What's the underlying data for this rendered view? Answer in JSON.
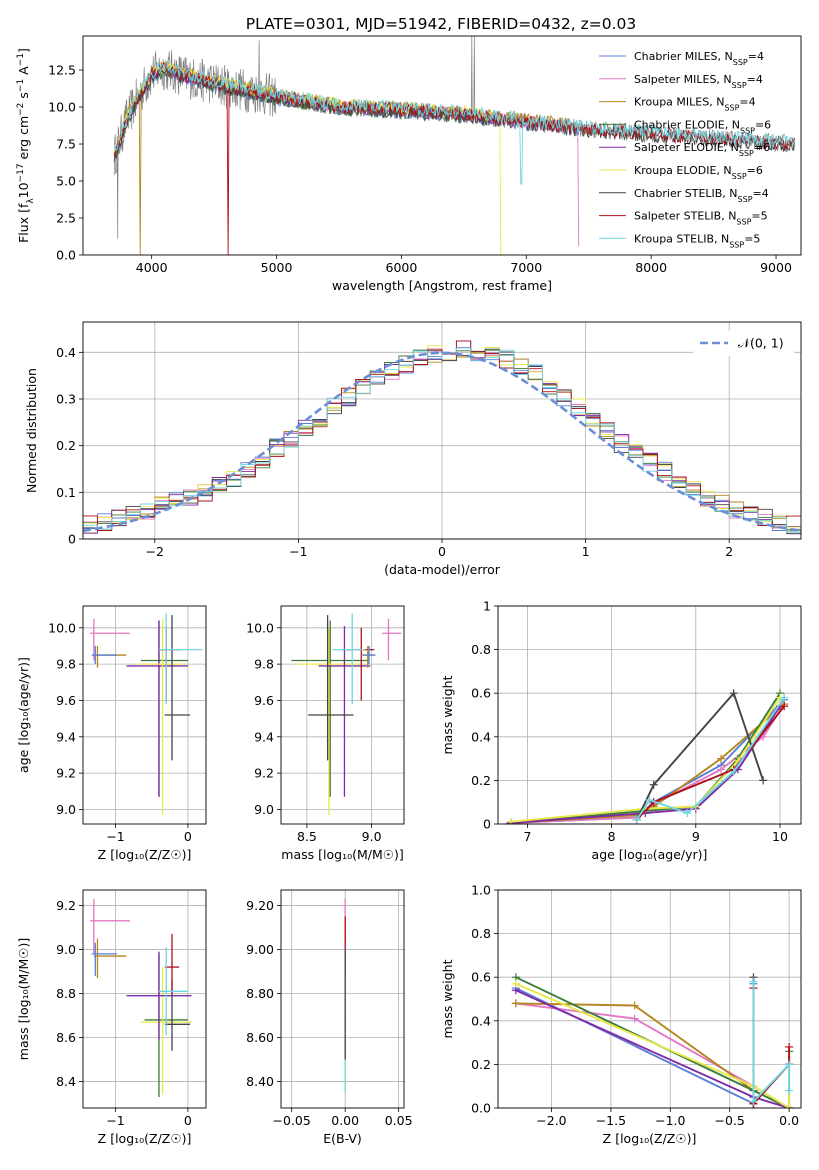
{
  "figure_title": "PLATE=0301, MJD=51942, FIBERID=0432, z=0.03",
  "colors": {
    "Chabrier MILES": "#5b7fd6",
    "Salpeter MILES": "#e377c2",
    "Kroupa MILES": "#b5851f",
    "Chabrier ELODIE": "#3a7d3a",
    "Salpeter ELODIE": "#7f2aa8",
    "Kroupa ELODIE": "#e8e84a",
    "Chabrier STELIB": "#444444",
    "Salpeter STELIB": "#b0101a",
    "Kroupa STELIB": "#6fd6e0",
    "grid": "#b0b0b0",
    "normal_curve": "#6a8fd6"
  },
  "chart_data": [
    {
      "id": "spectrum",
      "type": "line",
      "xlabel": "wavelength [Angstrom, rest frame]",
      "ylabel": "Flux [f$_\\lambda$10$^{-17}$ erg cm$^{-2}$ s$^{-1}$ A$^{-1}$]",
      "ylabel_parts": [
        "Flux [f",
        "λ",
        "10",
        "−17",
        " erg cm",
        "−2",
        " s",
        "−1",
        " A",
        "−1",
        "]"
      ],
      "xlim": [
        3450,
        9200
      ],
      "ylim": [
        0,
        14.8
      ],
      "xticks": [
        4000,
        5000,
        6000,
        7000,
        8000,
        9000
      ],
      "yticks": [
        0.0,
        2.5,
        5.0,
        7.5,
        10.0,
        12.5
      ],
      "grid": false,
      "legend_placement": "top-right",
      "legend": [
        {
          "label": "Chabrier MILES",
          "nssp": "4"
        },
        {
          "label": "Salpeter MILES",
          "nssp": "4"
        },
        {
          "label": "Kroupa MILES",
          "nssp": "4"
        },
        {
          "label": "Chabrier ELODIE",
          "nssp": "6"
        },
        {
          "label": "Salpeter ELODIE",
          "nssp": "6"
        },
        {
          "label": "Kroupa ELODIE",
          "nssp": "6"
        },
        {
          "label": "Chabrier STELIB",
          "nssp": "4"
        },
        {
          "label": "Salpeter STELIB",
          "nssp": "5"
        },
        {
          "label": "Kroupa STELIB",
          "nssp": "5"
        }
      ],
      "nssp_prefix": "N",
      "nssp_sub": "SSP",
      "continuum": {
        "x": [
          3700,
          3800,
          3900,
          4000,
          4100,
          4300,
          4600,
          5000,
          5500,
          6000,
          6500,
          7000,
          7500,
          8000,
          8500,
          9000,
          9150
        ],
        "y": [
          6.6,
          9.2,
          10.8,
          12.2,
          12.6,
          12.0,
          11.4,
          10.7,
          10.0,
          9.8,
          9.5,
          9.0,
          8.5,
          8.2,
          7.9,
          7.6,
          7.5
        ]
      },
      "model_end": {
        "MILES": 7420,
        "ELODIE": 6800,
        "STELIB": 9150
      },
      "model_dips": [
        {
          "series": "Salpeter STELIB",
          "x": 4610,
          "y": 0.0
        },
        {
          "series": "Kroupa ELODIE",
          "x": 6800,
          "y": 0.0
        },
        {
          "series": "Kroupa STELIB",
          "x": 6960,
          "y": 4.8
        },
        {
          "series": "Salpeter MILES",
          "x": 7420,
          "y": 0.6
        },
        {
          "series": "Kroupa MILES",
          "x": 3910,
          "y": 0.0
        }
      ],
      "data_spikes": [
        {
          "x": 6563,
          "y": 14.8
        },
        {
          "x": 6583,
          "y": 14.8
        },
        {
          "x": 4861,
          "y": 14.5
        },
        {
          "x": 3727,
          "y": 1.1
        }
      ]
    },
    {
      "id": "residuals",
      "type": "area",
      "xlabel": "(data-model)/error",
      "ylabel": "Normed distribution",
      "xlim": [
        -2.5,
        2.5
      ],
      "ylim": [
        0,
        0.465
      ],
      "xticks": [
        -2,
        -1,
        0,
        1,
        2
      ],
      "yticks": [
        0.0,
        0.1,
        0.2,
        0.3,
        0.4
      ],
      "grid": true,
      "legend_placement": "top-right",
      "legend": [
        {
          "label": "𝒩(0, 1)"
        }
      ],
      "bin_width": 0.1,
      "bin_start": -2.5,
      "histogram_values": [
        0.03,
        0.035,
        0.042,
        0.05,
        0.06,
        0.07,
        0.08,
        0.088,
        0.1,
        0.115,
        0.13,
        0.15,
        0.172,
        0.195,
        0.215,
        0.235,
        0.26,
        0.285,
        0.305,
        0.325,
        0.345,
        0.36,
        0.375,
        0.385,
        0.395,
        0.4,
        0.405,
        0.4,
        0.393,
        0.385,
        0.372,
        0.355,
        0.33,
        0.305,
        0.28,
        0.255,
        0.23,
        0.205,
        0.185,
        0.165,
        0.145,
        0.125,
        0.105,
        0.09,
        0.078,
        0.065,
        0.054,
        0.045,
        0.035,
        0.03
      ],
      "normal_curve": {
        "mean": 0,
        "sigma": 1
      }
    },
    {
      "id": "age-vs-Z",
      "type": "scatter",
      "xlabel": "Z [log₁₀(Z/Z☉)]",
      "ylabel": "age  [log₁₀(age/yr)]",
      "xlim": [
        -1.45,
        0.25
      ],
      "ylim": [
        8.92,
        10.12
      ],
      "xticks": [
        -1,
        0
      ],
      "yticks": [
        9.0,
        9.2,
        9.4,
        9.6,
        9.8,
        10.0
      ],
      "grid": true,
      "points": [
        {
          "series": "Salpeter MILES",
          "x": -1.3,
          "y": 9.97,
          "xerr": [
            0.05,
            0.5
          ],
          "yerr": [
            0.15,
            0.08
          ]
        },
        {
          "series": "Kroupa MILES",
          "x": -1.25,
          "y": 9.85,
          "xerr": [
            0.05,
            0.4
          ],
          "yerr": [
            0.07,
            0.05
          ]
        },
        {
          "series": "Chabrier MILES",
          "x": -1.28,
          "y": 9.85,
          "xerr": [
            0.05,
            0.3
          ],
          "yerr": [
            0.05,
            0.05
          ]
        },
        {
          "series": "Chabrier ELODIE",
          "x": -0.4,
          "y": 9.82,
          "xerr": [
            0.25,
            0.4
          ],
          "yerr": [
            0.75,
            0.22
          ]
        },
        {
          "series": "Salpeter ELODIE",
          "x": -0.4,
          "y": 9.79,
          "xerr": [
            0.45,
            0.4
          ],
          "yerr": [
            0.72,
            0.25
          ]
        },
        {
          "series": "Kroupa ELODIE",
          "x": -0.35,
          "y": 9.8,
          "xerr": [
            0.35,
            0.3
          ],
          "yerr": [
            0.83,
            0.25
          ]
        },
        {
          "series": "Chabrier STELIB",
          "x": -0.22,
          "y": 9.52,
          "xerr": [
            0.1,
            0.25
          ],
          "yerr": [
            0.25,
            0.55
          ]
        },
        {
          "series": "Salpeter STELIB",
          "x": -0.3,
          "y": 9.88,
          "xerr": [
            0.1,
            0.2
          ],
          "yerr": [
            0.28,
            0.12
          ]
        },
        {
          "series": "Kroupa STELIB",
          "x": -0.3,
          "y": 9.88,
          "xerr": [
            0.1,
            0.5
          ],
          "yerr": [
            0.3,
            0.2
          ]
        }
      ]
    },
    {
      "id": "age-vs-mass",
      "type": "scatter",
      "xlabel": "mass [log₁₀(M/M☉)]",
      "ylabel": "",
      "xlim": [
        8.3,
        9.25
      ],
      "ylim": [
        8.92,
        10.12
      ],
      "xticks": [
        8.5,
        9.0
      ],
      "yticks": [
        9.0,
        9.2,
        9.4,
        9.6,
        9.8,
        10.0
      ],
      "grid": true,
      "points": [
        {
          "series": "Chabrier ELODIE",
          "x": 8.68,
          "y": 9.82,
          "xerr": [
            0.3,
            0.3
          ],
          "yerr": [
            0.75,
            0.22
          ]
        },
        {
          "series": "Kroupa ELODIE",
          "x": 8.67,
          "y": 9.8,
          "xerr": [
            0.25,
            0.25
          ],
          "yerr": [
            0.83,
            0.2
          ]
        },
        {
          "series": "Salpeter ELODIE",
          "x": 8.79,
          "y": 9.79,
          "xerr": [
            0.2,
            0.2
          ],
          "yerr": [
            0.72,
            0.22
          ]
        },
        {
          "series": "Chabrier STELIB",
          "x": 8.66,
          "y": 9.52,
          "xerr": [
            0.15,
            0.2
          ],
          "yerr": [
            0.25,
            0.55
          ]
        },
        {
          "series": "Salpeter STELIB",
          "x": 8.92,
          "y": 9.88,
          "xerr": [
            0.15,
            0.1
          ],
          "yerr": [
            0.28,
            0.12
          ]
        },
        {
          "series": "Salpeter MILES",
          "x": 9.13,
          "y": 9.97,
          "xerr": [
            0.05,
            0.1
          ],
          "yerr": [
            0.15,
            0.08
          ]
        },
        {
          "series": "Kroupa MILES",
          "x": 8.97,
          "y": 9.85,
          "xerr": [
            0.05,
            0.05
          ],
          "yerr": [
            0.07,
            0.05
          ]
        },
        {
          "series": "Kroupa STELIB",
          "x": 8.85,
          "y": 9.88,
          "xerr": [
            0.15,
            0.1
          ],
          "yerr": [
            0.3,
            0.2
          ]
        },
        {
          "series": "Chabrier MILES",
          "x": 8.98,
          "y": 9.85,
          "xerr": [
            0.05,
            0.05
          ],
          "yerr": [
            0.05,
            0.05
          ]
        }
      ]
    },
    {
      "id": "mass-weight-vs-age",
      "type": "line",
      "xlabel": "age  [log₁₀(age/yr)]",
      "ylabel": "mass weight",
      "xlim": [
        6.65,
        10.25
      ],
      "ylim": [
        0,
        1
      ],
      "xticks": [
        7,
        8,
        9,
        10
      ],
      "yticks": [
        0.0,
        0.2,
        0.4,
        0.6,
        0.8,
        1.0
      ],
      "grid": true,
      "series": [
        {
          "name": "Chabrier MILES",
          "x": [
            6.8,
            8.3,
            8.5,
            9.3,
            10.05
          ],
          "y": [
            0.005,
            0.03,
            0.1,
            0.27,
            0.57
          ]
        },
        {
          "name": "Salpeter MILES",
          "x": [
            6.8,
            8.3,
            8.5,
            9.3,
            9.8,
            10.05
          ],
          "y": [
            0.005,
            0.03,
            0.09,
            0.25,
            0.4,
            0.55
          ]
        },
        {
          "name": "Kroupa MILES",
          "x": [
            6.8,
            8.3,
            8.5,
            9.3,
            10.05
          ],
          "y": [
            0.005,
            0.04,
            0.08,
            0.3,
            0.55
          ]
        },
        {
          "name": "Chabrier ELODIE",
          "x": [
            6.8,
            8.4,
            9.0,
            9.5,
            10.0
          ],
          "y": [
            0.005,
            0.06,
            0.08,
            0.3,
            0.6
          ]
        },
        {
          "name": "Salpeter ELODIE",
          "x": [
            6.8,
            8.4,
            9.0,
            9.5,
            10.0
          ],
          "y": [
            0.005,
            0.05,
            0.07,
            0.25,
            0.54
          ]
        },
        {
          "name": "Kroupa ELODIE",
          "x": [
            6.8,
            8.4,
            9.0,
            9.5,
            10.0
          ],
          "y": [
            0.01,
            0.07,
            0.08,
            0.29,
            0.58
          ]
        },
        {
          "name": "Chabrier STELIB",
          "x": [
            8.3,
            8.5,
            9.45,
            9.8
          ],
          "y": [
            0.02,
            0.18,
            0.6,
            0.2
          ]
        },
        {
          "name": "Salpeter STELIB",
          "x": [
            8.3,
            8.5,
            9.45,
            10.05
          ],
          "y": [
            0.02,
            0.1,
            0.25,
            0.54
          ]
        },
        {
          "name": "Kroupa STELIB",
          "x": [
            8.3,
            8.45,
            8.9,
            9.45,
            10.05
          ],
          "y": [
            0.02,
            0.11,
            0.05,
            0.24,
            0.58
          ]
        }
      ]
    },
    {
      "id": "mass-vs-Z",
      "type": "scatter",
      "xlabel": "Z [log₁₀(Z/Z☉)]",
      "ylabel": "mass [log₁₀(M/M☉)]",
      "xlim": [
        -1.45,
        0.25
      ],
      "ylim": [
        8.28,
        9.27
      ],
      "xticks": [
        -1,
        0
      ],
      "yticks": [
        8.4,
        8.6,
        8.8,
        9.0,
        9.2
      ],
      "grid": true,
      "points": [
        {
          "series": "Salpeter MILES",
          "x": -1.3,
          "y": 9.13,
          "xerr": [
            0.05,
            0.5
          ],
          "yerr": [
            0.15,
            0.1
          ]
        },
        {
          "series": "Kroupa MILES",
          "x": -1.25,
          "y": 8.97,
          "xerr": [
            0.05,
            0.4
          ],
          "yerr": [
            0.1,
            0.08
          ]
        },
        {
          "series": "Chabrier MILES",
          "x": -1.28,
          "y": 8.98,
          "xerr": [
            0.05,
            0.3
          ],
          "yerr": [
            0.1,
            0.05
          ]
        },
        {
          "series": "Chabrier ELODIE",
          "x": -0.4,
          "y": 8.68,
          "xerr": [
            0.2,
            0.4
          ],
          "yerr": [
            0.35,
            0.3
          ]
        },
        {
          "series": "Kroupa ELODIE",
          "x": -0.35,
          "y": 8.67,
          "xerr": [
            0.3,
            0.4
          ],
          "yerr": [
            0.33,
            0.25
          ]
        },
        {
          "series": "Salpeter ELODIE",
          "x": -0.4,
          "y": 8.79,
          "xerr": [
            0.45,
            0.45
          ],
          "yerr": [
            0.2,
            0.2
          ]
        },
        {
          "series": "Chabrier STELIB",
          "x": -0.22,
          "y": 8.66,
          "xerr": [
            0.1,
            0.25
          ],
          "yerr": [
            0.12,
            0.2
          ]
        },
        {
          "series": "Salpeter STELIB",
          "x": -0.22,
          "y": 8.92,
          "xerr": [
            0.1,
            0.1
          ],
          "yerr": [
            0.12,
            0.15
          ]
        },
        {
          "series": "Kroupa STELIB",
          "x": -0.3,
          "y": 8.81,
          "xerr": [
            0.1,
            0.3
          ],
          "yerr": [
            0.2,
            0.2
          ]
        }
      ]
    },
    {
      "id": "mass-vs-EBV",
      "type": "scatter",
      "xlabel": "E(B-V)",
      "ylabel": "",
      "xlim": [
        -0.06,
        0.055
      ],
      "ylim": [
        8.28,
        9.27
      ],
      "xticks": [
        -0.05,
        0.0,
        0.05
      ],
      "yticks": [
        8.4,
        8.6,
        8.8,
        9.0,
        9.2
      ],
      "grid": true,
      "points": [
        {
          "series": "Salpeter MILES",
          "x": 0,
          "y": 9.13,
          "xerr": [
            0,
            0
          ],
          "yerr": [
            0.1,
            0.1
          ]
        },
        {
          "series": "Salpeter STELIB",
          "x": 0,
          "y": 9.0,
          "xerr": [
            0,
            0
          ],
          "yerr": [
            0.1,
            0.15
          ]
        },
        {
          "series": "Kroupa ELODIE",
          "x": 0,
          "y": 8.5,
          "xerr": [
            0,
            0
          ],
          "yerr": [
            0.15,
            0.2
          ]
        },
        {
          "series": "Kroupa STELIB",
          "x": 0,
          "y": 8.8,
          "xerr": [
            0,
            0
          ],
          "yerr": [
            0.45,
            0.2
          ]
        },
        {
          "series": "Chabrier STELIB",
          "x": 0,
          "y": 8.7,
          "xerr": [
            0,
            0
          ],
          "yerr": [
            0.2,
            0.3
          ]
        }
      ]
    },
    {
      "id": "mass-weight-vs-Z",
      "type": "line",
      "xlabel": "Z [log₁₀(Z/Z☉)]",
      "ylabel": "mass weight",
      "xlim": [
        -2.45,
        0.1
      ],
      "ylim": [
        0,
        1
      ],
      "xticks": [
        -2.0,
        -1.5,
        -1.0,
        -0.5,
        0.0
      ],
      "yticks": [
        0.0,
        0.2,
        0.4,
        0.6,
        0.8,
        1.0
      ],
      "grid": true,
      "series": [
        {
          "name": "Chabrier MILES",
          "x": [
            -2.3,
            -0.3,
            -0.3
          ],
          "y": [
            0.55,
            0.02,
            0.57
          ]
        },
        {
          "name": "Salpeter MILES",
          "x": [
            -2.3,
            -1.3,
            -0.3,
            0.0
          ],
          "y": [
            0.48,
            0.41,
            0.1,
            0.0
          ]
        },
        {
          "name": "Kroupa MILES",
          "x": [
            -2.3,
            -1.3,
            -0.3,
            0.0
          ],
          "y": [
            0.48,
            0.47,
            0.08,
            0.0
          ]
        },
        {
          "name": "Chabrier ELODIE",
          "x": [
            -2.3,
            -0.3,
            0.0,
            0.0
          ],
          "y": [
            0.6,
            0.08,
            0.0,
            0.26
          ]
        },
        {
          "name": "Salpeter ELODIE",
          "x": [
            -2.3,
            -0.3,
            0.0
          ],
          "y": [
            0.54,
            0.05,
            0.0
          ]
        },
        {
          "name": "Kroupa ELODIE",
          "x": [
            -2.3,
            -0.3,
            0.0,
            0.0
          ],
          "y": [
            0.57,
            0.1,
            0.0,
            0.28
          ]
        },
        {
          "name": "Chabrier STELIB",
          "x": [
            -0.3,
            -0.3,
            -0.3,
            0.0,
            0.0
          ],
          "y": [
            0.6,
            0.02,
            0.02,
            0.2,
            0.2
          ]
        },
        {
          "name": "Salpeter STELIB",
          "x": [
            -0.3,
            -0.3,
            0.0,
            0.0
          ],
          "y": [
            0.55,
            0.02,
            0.2,
            0.28
          ]
        },
        {
          "name": "Kroupa STELIB",
          "x": [
            -0.3,
            -0.3,
            0.0,
            0.0
          ],
          "y": [
            0.58,
            0.03,
            0.2,
            0.08
          ]
        }
      ]
    }
  ]
}
